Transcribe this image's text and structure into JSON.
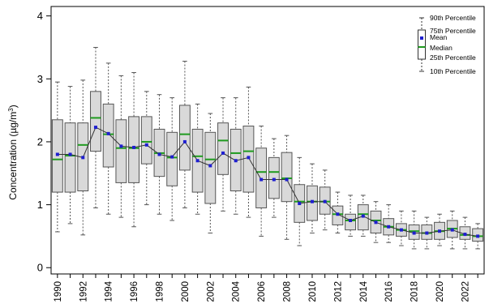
{
  "chart_data": {
    "type": "box",
    "ylabel": "Concentration (µg/m³)",
    "ylabel_parts": {
      "prefix": "Concentration (",
      "unit": "µg/m",
      "sup": "3",
      "suffix": ")"
    },
    "ylim": [
      -0.1,
      4.15
    ],
    "yticks": [
      0,
      1,
      2,
      3,
      4
    ],
    "ytick_labels": [
      "0",
      "1",
      "2",
      "3",
      "4"
    ],
    "categories": [
      "1990",
      "1991",
      "1992",
      "1993",
      "1994",
      "1995",
      "1996",
      "1997",
      "1998",
      "1999",
      "2000",
      "2001",
      "2002",
      "2003",
      "2004",
      "2005",
      "2006",
      "2007",
      "2008",
      "2009",
      "2010",
      "2011",
      "2012",
      "2013",
      "2014",
      "2015",
      "2016",
      "2017",
      "2018",
      "2019",
      "2020",
      "2021",
      "2022",
      "2023"
    ],
    "xtick_labels_shown": [
      "1990",
      "",
      "1992",
      "",
      "1994",
      "",
      "1996",
      "",
      "1998",
      "",
      "2000",
      "",
      "2002",
      "",
      "2004",
      "",
      "2006",
      "",
      "2008",
      "",
      "2010",
      "",
      "2012",
      "",
      "2014",
      "",
      "2016",
      "",
      "2018",
      "",
      "2020",
      "",
      "2022",
      ""
    ],
    "p10": [
      0.57,
      0.7,
      0.52,
      0.95,
      0.85,
      0.8,
      0.65,
      1.0,
      0.85,
      0.75,
      0.95,
      0.85,
      0.55,
      0.9,
      0.85,
      0.8,
      0.5,
      0.8,
      0.45,
      0.35,
      0.55,
      0.6,
      0.55,
      0.5,
      0.5,
      0.4,
      0.4,
      0.35,
      0.3,
      0.3,
      0.35,
      0.3,
      0.3,
      0.3
    ],
    "p25": [
      1.2,
      1.2,
      1.22,
      1.85,
      1.6,
      1.35,
      1.35,
      1.65,
      1.45,
      1.3,
      1.55,
      1.2,
      1.02,
      1.48,
      1.22,
      1.2,
      0.95,
      1.1,
      1.05,
      0.72,
      0.75,
      0.85,
      0.68,
      0.6,
      0.6,
      0.55,
      0.52,
      0.5,
      0.45,
      0.45,
      0.45,
      0.48,
      0.45,
      0.42
    ],
    "median": [
      1.72,
      1.78,
      1.95,
      2.38,
      2.12,
      1.9,
      1.9,
      2.0,
      1.82,
      1.75,
      2.12,
      1.77,
      1.72,
      2.02,
      1.82,
      1.85,
      1.52,
      1.52,
      1.42,
      1.05,
      1.05,
      1.05,
      0.85,
      0.75,
      0.85,
      0.75,
      0.65,
      0.6,
      0.58,
      0.55,
      0.58,
      0.62,
      0.52,
      0.5
    ],
    "mean": [
      1.8,
      1.8,
      1.75,
      2.23,
      2.13,
      1.93,
      1.91,
      1.95,
      1.8,
      1.76,
      2.0,
      1.7,
      1.62,
      1.82,
      1.7,
      1.75,
      1.4,
      1.4,
      1.4,
      1.02,
      1.05,
      1.05,
      0.85,
      0.75,
      0.82,
      0.72,
      0.65,
      0.6,
      0.55,
      0.55,
      0.58,
      0.6,
      0.53,
      0.5
    ],
    "p75": [
      2.35,
      2.3,
      2.3,
      2.8,
      2.6,
      2.35,
      2.4,
      2.4,
      2.2,
      2.15,
      2.58,
      2.2,
      2.15,
      2.3,
      2.2,
      2.25,
      1.9,
      1.75,
      1.83,
      1.32,
      1.3,
      1.28,
      0.98,
      0.85,
      1.0,
      0.9,
      0.78,
      0.7,
      0.68,
      0.68,
      0.72,
      0.75,
      0.65,
      0.62
    ],
    "p90": [
      2.95,
      2.88,
      2.98,
      3.5,
      3.25,
      3.05,
      3.1,
      2.8,
      2.75,
      2.7,
      3.28,
      2.6,
      2.45,
      2.7,
      2.7,
      2.87,
      2.25,
      2.05,
      2.1,
      1.75,
      1.65,
      1.55,
      1.2,
      1.15,
      1.15,
      1.05,
      1.0,
      0.9,
      0.9,
      0.8,
      0.85,
      0.9,
      0.8,
      0.7
    ],
    "colors": {
      "box_fill": "#d9d9d9",
      "box_stroke": "#555555",
      "median": "#1f9b1f",
      "mean": "#1f1fd0",
      "mean_line": "#333333",
      "whisker": "#555555"
    },
    "grid": false,
    "legend": {
      "placement": "top-right",
      "labels": {
        "p90": "90th Percentile",
        "p75": "75th Percentile",
        "mean": "Mean",
        "median": "Median",
        "p25": "25th Percentile",
        "p10": "10th Percentile"
      }
    }
  }
}
